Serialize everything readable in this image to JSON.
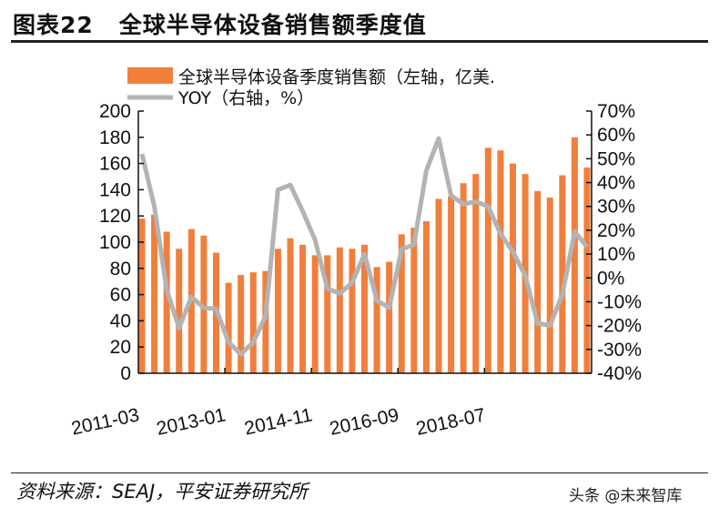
{
  "header": {
    "figure_no": "图表22",
    "title": "全球半导体设备销售额季度值"
  },
  "footer": {
    "source": "资料来源：SEAJ，平安证券研究所",
    "watermark": "头条 @未来智库"
  },
  "chart_data": {
    "type": "bar+line",
    "title": "全球半导体设备销售额季度值",
    "x_tick_labels": [
      "2011-03",
      "2013-01",
      "2014-11",
      "2016-09",
      "2018-07"
    ],
    "x_tick_every": 7,
    "left_axis": {
      "ylim": [
        0,
        200
      ],
      "ticks": [
        "0",
        "20",
        "40",
        "60",
        "80",
        "100",
        "120",
        "140",
        "160",
        "180",
        "200"
      ]
    },
    "right_axis": {
      "ylim": [
        -40,
        70
      ],
      "ticks": [
        "-40%",
        "-30%",
        "-20%",
        "-10%",
        "0%",
        "10%",
        "20%",
        "30%",
        "40%",
        "50%",
        "60%",
        "70%"
      ]
    },
    "legend": [
      {
        "label": "全球半导体设备季度销售额（左轴，亿美.",
        "color": "#F07F3C",
        "kind": "bar"
      },
      {
        "label": "YOY（右轴，%）",
        "color": "#B3B3B3",
        "kind": "line"
      }
    ],
    "series": [
      {
        "name": "全球半导体设备季度销售额（左轴，亿美元）",
        "axis": "left",
        "type": "bar",
        "values": [
          118,
          121,
          108,
          95,
          110,
          105,
          92,
          69,
          75,
          77,
          78,
          95,
          103,
          98,
          90,
          90,
          96,
          95,
          98,
          81,
          85,
          106,
          111,
          116,
          133,
          135,
          145,
          152,
          172,
          170,
          160,
          152,
          139,
          134,
          151,
          180,
          157
        ]
      },
      {
        "name": "YOY（右轴，%）",
        "axis": "right",
        "type": "line",
        "values": [
          52,
          30,
          -5,
          -21,
          -8,
          -12.5,
          -13,
          -27,
          -32,
          -27,
          -16,
          37,
          39,
          28,
          16,
          -4.5,
          -6.5,
          -2,
          10,
          -9.5,
          -12.5,
          12,
          14,
          45,
          58.5,
          34.5,
          31,
          32,
          30,
          18.5,
          11,
          1,
          -19,
          -20,
          -7,
          19.5,
          13
        ]
      }
    ]
  }
}
